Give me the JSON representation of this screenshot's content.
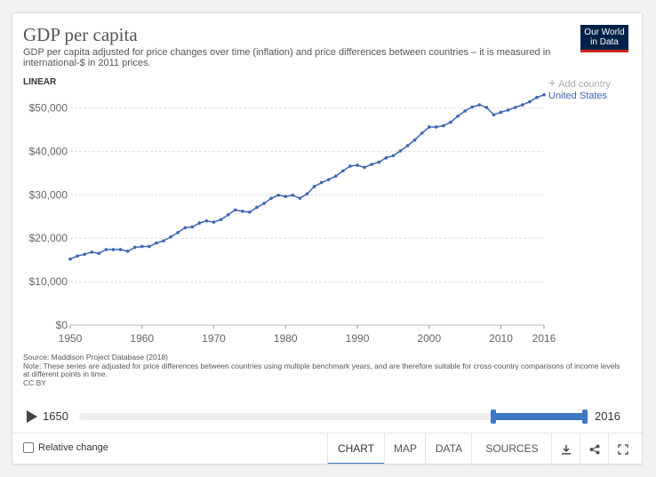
{
  "header": {
    "title": "GDP per capita",
    "subtitle": "GDP per capita adjusted for price changes over time (inflation) and price differences between countries – it is measured in international-$ in 2011 prices.",
    "logo_line1": "Our World",
    "logo_line2": "in Data",
    "scale_label": "LINEAR",
    "add_country": "Add country"
  },
  "chart_data": {
    "type": "line",
    "title": "GDP per capita",
    "xlabel": "",
    "ylabel": "",
    "xlim": [
      1950,
      2016
    ],
    "ylim": [
      0,
      55000
    ],
    "x_ticks": [
      "1950",
      "1960",
      "1970",
      "1980",
      "1990",
      "2000",
      "2010",
      "2016"
    ],
    "y_ticks": [
      {
        "value": 0,
        "label": "$0"
      },
      {
        "value": 10000,
        "label": "$10,000"
      },
      {
        "value": 20000,
        "label": "$20,000"
      },
      {
        "value": 30000,
        "label": "$30,000"
      },
      {
        "value": 40000,
        "label": "$40,000"
      },
      {
        "value": 50000,
        "label": "$50,000"
      }
    ],
    "series": [
      {
        "name": "United States",
        "color": "#3e66b3",
        "x": [
          1950,
          1951,
          1952,
          1953,
          1954,
          1955,
          1956,
          1957,
          1958,
          1959,
          1960,
          1961,
          1962,
          1963,
          1964,
          1965,
          1966,
          1967,
          1968,
          1969,
          1970,
          1971,
          1972,
          1973,
          1974,
          1975,
          1976,
          1977,
          1978,
          1979,
          1980,
          1981,
          1982,
          1983,
          1984,
          1985,
          1986,
          1987,
          1988,
          1989,
          1990,
          1991,
          1992,
          1993,
          1994,
          1995,
          1996,
          1997,
          1998,
          1999,
          2000,
          2001,
          2002,
          2003,
          2004,
          2005,
          2006,
          2007,
          2008,
          2009,
          2010,
          2011,
          2012,
          2013,
          2014,
          2015,
          2016
        ],
        "values": [
          15200,
          15900,
          16300,
          16800,
          16500,
          17400,
          17400,
          17400,
          17000,
          17900,
          18100,
          18100,
          18900,
          19400,
          20300,
          21300,
          22400,
          22600,
          23500,
          24000,
          23700,
          24300,
          25400,
          26500,
          26200,
          26000,
          27100,
          28000,
          29200,
          29900,
          29600,
          29900,
          29200,
          30200,
          31900,
          32800,
          33500,
          34300,
          35500,
          36600,
          36800,
          36300,
          37000,
          37500,
          38500,
          39000,
          40100,
          41300,
          42600,
          44200,
          45600,
          45600,
          45900,
          46700,
          48100,
          49300,
          50200,
          50700,
          50100,
          48400,
          49000,
          49500,
          50100,
          50700,
          51400,
          52400,
          53000
        ]
      }
    ]
  },
  "footer": {
    "source": "Source: Maddison Project Database (2018)",
    "note": "Note: These series are adjusted for price differences between countries using multiple benchmark years, and are therefore suitable for cross-country comparisons of income levels at different points in time.",
    "license": "CC BY"
  },
  "timeline": {
    "start": "1650",
    "end": "2016"
  },
  "controls": {
    "relative_change": "Relative change",
    "tabs": [
      "CHART",
      "MAP",
      "DATA",
      "SOURCES"
    ]
  }
}
